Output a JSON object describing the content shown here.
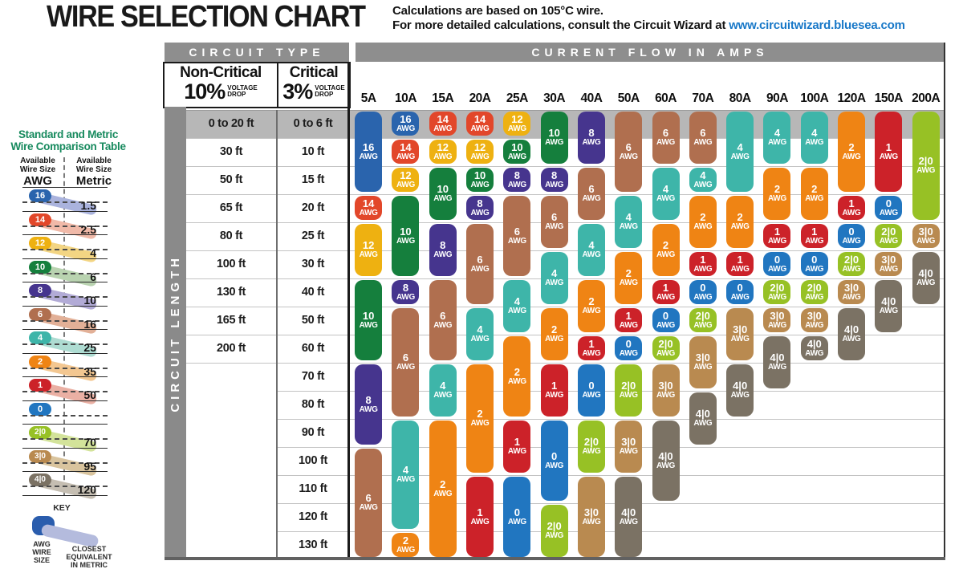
{
  "header": {
    "title": "WIRE SELECTION CHART",
    "note_line1": "Calculations are based on 105°C wire.",
    "note_line2": "For more detailed calculations, consult the Circuit Wizard at ",
    "note_link": "www.circuitwizard.bluesea.com"
  },
  "sidebar": {
    "title_line1": "Standard and Metric",
    "title_line2": "Wire Comparison Table",
    "title_color": "#178a5e",
    "left_header": "Available Wire Size",
    "left_unit": "AWG",
    "right_header": "Available Wire Size",
    "right_unit": "Metric",
    "rows": [
      {
        "awg": "16",
        "metric": "1.5"
      },
      {
        "awg": "14",
        "metric": "2.5"
      },
      {
        "awg": "12",
        "metric": "4"
      },
      {
        "awg": "10",
        "metric": "6"
      },
      {
        "awg": "8",
        "metric": "10"
      },
      {
        "awg": "6",
        "metric": "16"
      },
      {
        "awg": "4",
        "metric": "25"
      },
      {
        "awg": "2",
        "metric": "35"
      },
      {
        "awg": "1",
        "metric": "50"
      },
      {
        "awg": "0",
        "metric": ""
      },
      {
        "awg": "2/0",
        "metric": "70"
      },
      {
        "awg": "3/0",
        "metric": "95"
      },
      {
        "awg": "4/0",
        "metric": "120"
      }
    ],
    "key": {
      "label": "KEY",
      "left_label": "AWG\nWIRE\nSIZE",
      "right_label": "CLOSEST\nEQUIVALENT\nIN METRIC",
      "pill_color": "#2a5dad",
      "band_color": "#b4bbdd"
    }
  },
  "table_headers": {
    "circuit_type": "CIRCUIT TYPE",
    "current_flow": "CURRENT FLOW IN AMPS",
    "non_critical_label": "Non-Critical",
    "non_critical_pct": "10%",
    "critical_label": "Critical",
    "critical_pct": "3%",
    "voltage_drop_line1": "VOLTAGE",
    "voltage_drop_line2": "DROP",
    "circuit_length": "CIRCUIT LENGTH"
  },
  "chart_data": {
    "type": "heatmap",
    "title": "WIRE SELECTION CHART",
    "x_axis_label": "Current Flow in Amps",
    "y_axis_label": "Circuit Length",
    "pill_suffix": "AWG",
    "amp_columns": [
      "5A",
      "10A",
      "15A",
      "20A",
      "25A",
      "30A",
      "40A",
      "50A",
      "60A",
      "70A",
      "80A",
      "90A",
      "100A",
      "120A",
      "150A",
      "200A"
    ],
    "row_labels_non_critical_10pct": [
      "0 to 20 ft",
      "30 ft",
      "50 ft",
      "65 ft",
      "80 ft",
      "100 ft",
      "130 ft",
      "165 ft",
      "200 ft"
    ],
    "row_labels_critical_3pct": [
      "0 to 6 ft",
      "10 ft",
      "15 ft",
      "20 ft",
      "25 ft",
      "30 ft",
      "40 ft",
      "50 ft",
      "60 ft",
      "70 ft",
      "80 ft",
      "90 ft",
      "100 ft",
      "110 ft",
      "120 ft",
      "130 ft"
    ],
    "gauge_colors": {
      "16": "#2a64ad",
      "14": "#e2472a",
      "12": "#eeb111",
      "10": "#157f3d",
      "8": "#46358e",
      "6": "#b06f4f",
      "4": "#3eb5a9",
      "2": "#ef8414",
      "1": "#cc2229",
      "0": "#2176c0",
      "2/0": "#97c125",
      "3/0": "#b98a50",
      "4/0": "#7b7264"
    },
    "metric_band_colors": {
      "16": "#aab3dd",
      "14": "#f0b9a8",
      "12": "#f3d583",
      "10": "#b9d3b0",
      "8": "#b2abd6",
      "6": "#e2b097",
      "4": "#aedcd2",
      "2": "#f3c791",
      "1": "#eab0a4",
      "0": "",
      "2/0": "#d3e39a",
      "3/0": "#d9c49e",
      "4/0": "#c5beb2"
    },
    "columns": [
      {
        "amp": "5A",
        "segments": [
          {
            "gauge": "16",
            "from": 1,
            "to": 3
          },
          {
            "gauge": "14",
            "from": 4,
            "to": 4
          },
          {
            "gauge": "12",
            "from": 5,
            "to": 6
          },
          {
            "gauge": "10",
            "from": 7,
            "to": 9
          },
          {
            "gauge": "8",
            "from": 10,
            "to": 12
          },
          {
            "gauge": "6",
            "from": 13,
            "to": 16
          }
        ]
      },
      {
        "amp": "10A",
        "segments": [
          {
            "gauge": "16",
            "from": 1,
            "to": 1
          },
          {
            "gauge": "14",
            "from": 2,
            "to": 2
          },
          {
            "gauge": "12",
            "from": 3,
            "to": 3
          },
          {
            "gauge": "10",
            "from": 4,
            "to": 6
          },
          {
            "gauge": "8",
            "from": 7,
            "to": 7
          },
          {
            "gauge": "6",
            "from": 8,
            "to": 11
          },
          {
            "gauge": "4",
            "from": 12,
            "to": 15
          },
          {
            "gauge": "2",
            "from": 16,
            "to": 16
          }
        ]
      },
      {
        "amp": "15A",
        "segments": [
          {
            "gauge": "14",
            "from": 1,
            "to": 1
          },
          {
            "gauge": "12",
            "from": 2,
            "to": 2
          },
          {
            "gauge": "10",
            "from": 3,
            "to": 4
          },
          {
            "gauge": "8",
            "from": 5,
            "to": 6
          },
          {
            "gauge": "6",
            "from": 7,
            "to": 9
          },
          {
            "gauge": "4",
            "from": 10,
            "to": 11
          },
          {
            "gauge": "2",
            "from": 12,
            "to": 16
          }
        ]
      },
      {
        "amp": "20A",
        "segments": [
          {
            "gauge": "14",
            "from": 1,
            "to": 1
          },
          {
            "gauge": "12",
            "from": 2,
            "to": 2
          },
          {
            "gauge": "10",
            "from": 3,
            "to": 3
          },
          {
            "gauge": "8",
            "from": 4,
            "to": 4
          },
          {
            "gauge": "6",
            "from": 5,
            "to": 7
          },
          {
            "gauge": "4",
            "from": 8,
            "to": 9
          },
          {
            "gauge": "2",
            "from": 10,
            "to": 13
          },
          {
            "gauge": "1",
            "from": 14,
            "to": 16
          }
        ]
      },
      {
        "amp": "25A",
        "segments": [
          {
            "gauge": "12",
            "from": 1,
            "to": 1
          },
          {
            "gauge": "10",
            "from": 2,
            "to": 2
          },
          {
            "gauge": "8",
            "from": 3,
            "to": 3
          },
          {
            "gauge": "6",
            "from": 4,
            "to": 6
          },
          {
            "gauge": "4",
            "from": 7,
            "to": 8
          },
          {
            "gauge": "2",
            "from": 9,
            "to": 11
          },
          {
            "gauge": "1",
            "from": 12,
            "to": 13
          },
          {
            "gauge": "0",
            "from": 14,
            "to": 16
          }
        ]
      },
      {
        "amp": "30A",
        "segments": [
          {
            "gauge": "10",
            "from": 1,
            "to": 2
          },
          {
            "gauge": "8",
            "from": 3,
            "to": 3
          },
          {
            "gauge": "6",
            "from": 4,
            "to": 5
          },
          {
            "gauge": "4",
            "from": 6,
            "to": 7
          },
          {
            "gauge": "2",
            "from": 8,
            "to": 9
          },
          {
            "gauge": "1",
            "from": 10,
            "to": 11
          },
          {
            "gauge": "0",
            "from": 12,
            "to": 14
          },
          {
            "gauge": "2/0",
            "from": 15,
            "to": 16
          }
        ]
      },
      {
        "amp": "40A",
        "segments": [
          {
            "gauge": "8",
            "from": 1,
            "to": 2
          },
          {
            "gauge": "6",
            "from": 3,
            "to": 4
          },
          {
            "gauge": "4",
            "from": 5,
            "to": 6
          },
          {
            "gauge": "2",
            "from": 7,
            "to": 8
          },
          {
            "gauge": "1",
            "from": 9,
            "to": 9
          },
          {
            "gauge": "0",
            "from": 10,
            "to": 11
          },
          {
            "gauge": "2/0",
            "from": 12,
            "to": 13
          },
          {
            "gauge": "3/0",
            "from": 14,
            "to": 16
          }
        ]
      },
      {
        "amp": "50A",
        "segments": [
          {
            "gauge": "6",
            "from": 1,
            "to": 3
          },
          {
            "gauge": "4",
            "from": 4,
            "to": 5
          },
          {
            "gauge": "2",
            "from": 6,
            "to": 7
          },
          {
            "gauge": "1",
            "from": 8,
            "to": 8
          },
          {
            "gauge": "0",
            "from": 9,
            "to": 9
          },
          {
            "gauge": "2/0",
            "from": 10,
            "to": 11
          },
          {
            "gauge": "3/0",
            "from": 12,
            "to": 13
          },
          {
            "gauge": "4/0",
            "from": 14,
            "to": 16
          }
        ]
      },
      {
        "amp": "60A",
        "segments": [
          {
            "gauge": "6",
            "from": 1,
            "to": 2
          },
          {
            "gauge": "4",
            "from": 3,
            "to": 4
          },
          {
            "gauge": "2",
            "from": 5,
            "to": 6
          },
          {
            "gauge": "1",
            "from": 7,
            "to": 7
          },
          {
            "gauge": "0",
            "from": 8,
            "to": 8
          },
          {
            "gauge": "2/0",
            "from": 9,
            "to": 9
          },
          {
            "gauge": "3/0",
            "from": 10,
            "to": 11
          },
          {
            "gauge": "4/0",
            "from": 12,
            "to": 14
          }
        ]
      },
      {
        "amp": "70A",
        "segments": [
          {
            "gauge": "6",
            "from": 1,
            "to": 2
          },
          {
            "gauge": "4",
            "from": 3,
            "to": 3
          },
          {
            "gauge": "2",
            "from": 4,
            "to": 5
          },
          {
            "gauge": "1",
            "from": 6,
            "to": 6
          },
          {
            "gauge": "0",
            "from": 7,
            "to": 7
          },
          {
            "gauge": "2/0",
            "from": 8,
            "to": 8
          },
          {
            "gauge": "3/0",
            "from": 9,
            "to": 10
          },
          {
            "gauge": "4/0",
            "from": 11,
            "to": 12
          }
        ]
      },
      {
        "amp": "80A",
        "segments": [
          {
            "gauge": "4",
            "from": 1,
            "to": 3
          },
          {
            "gauge": "2",
            "from": 4,
            "to": 5
          },
          {
            "gauge": "1",
            "from": 6,
            "to": 6
          },
          {
            "gauge": "0",
            "from": 7,
            "to": 7
          },
          {
            "gauge": "3/0",
            "from": 8,
            "to": 9
          },
          {
            "gauge": "4/0",
            "from": 10,
            "to": 11
          }
        ]
      },
      {
        "amp": "90A",
        "segments": [
          {
            "gauge": "4",
            "from": 1,
            "to": 2
          },
          {
            "gauge": "2",
            "from": 3,
            "to": 4
          },
          {
            "gauge": "1",
            "from": 5,
            "to": 5
          },
          {
            "gauge": "0",
            "from": 6,
            "to": 6
          },
          {
            "gauge": "2/0",
            "from": 7,
            "to": 7
          },
          {
            "gauge": "3/0",
            "from": 8,
            "to": 8
          },
          {
            "gauge": "4/0",
            "from": 9,
            "to": 10
          }
        ]
      },
      {
        "amp": "100A",
        "segments": [
          {
            "gauge": "4",
            "from": 1,
            "to": 2
          },
          {
            "gauge": "2",
            "from": 3,
            "to": 4
          },
          {
            "gauge": "1",
            "from": 5,
            "to": 5
          },
          {
            "gauge": "0",
            "from": 6,
            "to": 6
          },
          {
            "gauge": "2/0",
            "from": 7,
            "to": 7
          },
          {
            "gauge": "3/0",
            "from": 8,
            "to": 8
          },
          {
            "gauge": "4/0",
            "from": 9,
            "to": 9
          }
        ]
      },
      {
        "amp": "120A",
        "segments": [
          {
            "gauge": "2",
            "from": 1,
            "to": 3
          },
          {
            "gauge": "1",
            "from": 4,
            "to": 4
          },
          {
            "gauge": "0",
            "from": 5,
            "to": 5
          },
          {
            "gauge": "2/0",
            "from": 6,
            "to": 6
          },
          {
            "gauge": "3/0",
            "from": 7,
            "to": 7
          },
          {
            "gauge": "4/0",
            "from": 8,
            "to": 9
          }
        ]
      },
      {
        "amp": "150A",
        "segments": [
          {
            "gauge": "1",
            "from": 1,
            "to": 3
          },
          {
            "gauge": "0",
            "from": 4,
            "to": 4
          },
          {
            "gauge": "2/0",
            "from": 5,
            "to": 5
          },
          {
            "gauge": "3/0",
            "from": 6,
            "to": 6
          },
          {
            "gauge": "4/0",
            "from": 7,
            "to": 8
          }
        ]
      },
      {
        "amp": "200A",
        "segments": [
          {
            "gauge": "2/0",
            "from": 1,
            "to": 4
          },
          {
            "gauge": "3/0",
            "from": 5,
            "to": 5
          },
          {
            "gauge": "4/0",
            "from": 6,
            "to": 7
          }
        ]
      }
    ]
  }
}
